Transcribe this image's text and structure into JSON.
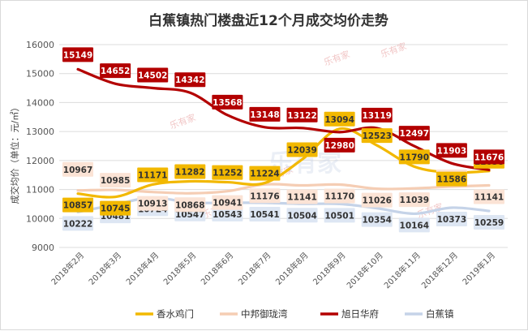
{
  "chart_data": {
    "type": "line",
    "title": "白蕉镇热门楼盘近12个月成交均价走势",
    "ylabel": "成交均价（单位：元/㎡）",
    "xlabel": "",
    "categories": [
      "2018年2月",
      "2018年3月",
      "2018年4月",
      "2018年5月",
      "2018年6月",
      "2018年7月",
      "2018年8月",
      "2018年9月",
      "2018年10月",
      "2018年11月",
      "2018年12月",
      "2019年1月"
    ],
    "ylim": [
      9000,
      16000
    ],
    "yticks": [
      9000,
      10000,
      11000,
      12000,
      13000,
      14000,
      15000,
      16000
    ],
    "grid": true,
    "legend_position": "bottom",
    "series": [
      {
        "name": "香水鸡门",
        "color": "#f2b800",
        "label_bg": "#f2b800",
        "label_fg": "#333333",
        "values": [
          10857,
          10745,
          11171,
          11282,
          11252,
          11224,
          12039,
          13094,
          12523,
          11790,
          11586,
          11638
        ]
      },
      {
        "name": "中邦御珑湾",
        "color": "#f5cdb4",
        "label_bg": "#fbe3d5",
        "label_fg": "#333333",
        "values": [
          10967,
          10985,
          10913,
          10868,
          10941,
          11176,
          11141,
          11170,
          11026,
          11039,
          11102,
          11141
        ]
      },
      {
        "name": "旭日华府",
        "color": "#b30000",
        "label_bg": "#b30000",
        "label_fg": "#ffffff",
        "values": [
          15149,
          14652,
          14502,
          14342,
          13568,
          13148,
          13122,
          12980,
          13119,
          12497,
          11903,
          11676
        ]
      },
      {
        "name": "白蕉镇",
        "color": "#c5d3e8",
        "label_bg": "#dde6f3",
        "label_fg": "#333333",
        "values": [
          10222,
          10481,
          10724,
          10547,
          10543,
          10541,
          10504,
          10501,
          10354,
          10164,
          10373,
          10259
        ]
      }
    ],
    "watermark": "乐有家"
  }
}
